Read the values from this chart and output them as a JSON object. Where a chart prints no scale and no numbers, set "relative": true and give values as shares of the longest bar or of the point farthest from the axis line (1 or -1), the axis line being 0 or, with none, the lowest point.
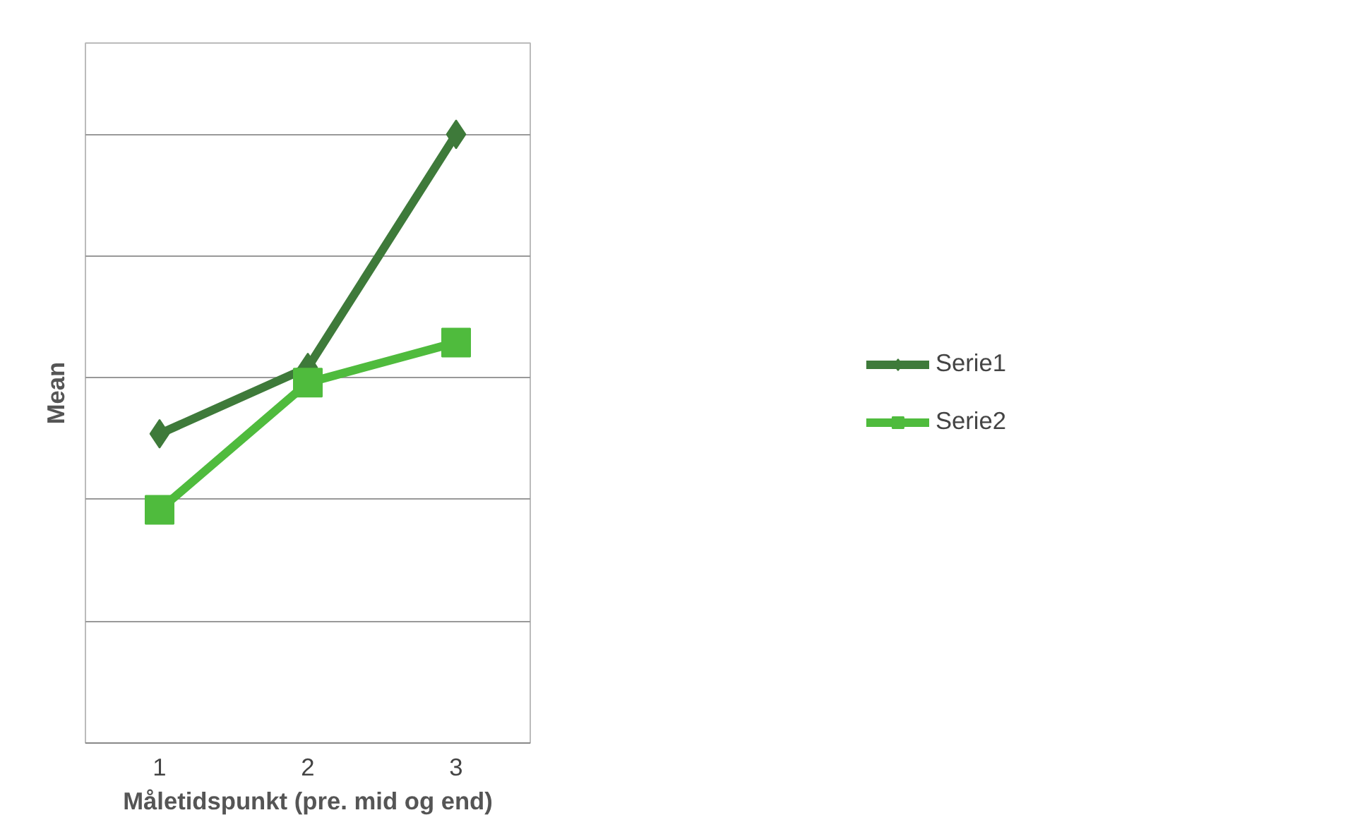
{
  "chart_data": {
    "type": "line",
    "relative": true,
    "xlabel": "Måletidspunkt (pre. mid og end)",
    "ylabel": "Mean",
    "categories": [
      "1",
      "2",
      "3"
    ],
    "series": [
      {
        "name": "Serie1",
        "color": "#3e7a3a",
        "marker": "diamond",
        "values": [
          0.508,
          0.617,
          1
        ]
      },
      {
        "name": "Serie2",
        "color": "#4fbb3d",
        "marker": "square",
        "values": [
          0.383,
          0.592,
          0.658
        ]
      }
    ],
    "grid": "y",
    "legend": "right",
    "line_style": "solid"
  }
}
